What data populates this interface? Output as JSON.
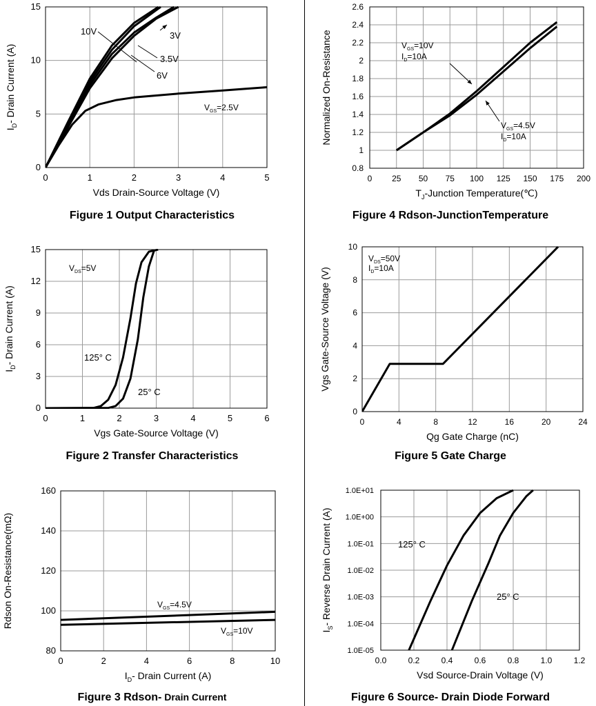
{
  "figures": [
    {
      "id": "fig1",
      "caption": "Figure 1 Output Characteristics",
      "chart_data": {
        "type": "line",
        "xlabel": "Vds Drain-Source Voltage (V)",
        "ylabel_main": "I",
        "ylabel_sub": "D",
        "ylabel_rest": "- Drain Current (A)",
        "xlim": [
          0,
          5
        ],
        "ylim": [
          0,
          15
        ],
        "xticks": [
          0,
          1,
          2,
          3,
          4,
          5
        ],
        "yticks": [
          0,
          5,
          10,
          15
        ],
        "xtick_labels": [
          "0",
          "1",
          "2",
          "3",
          "4",
          "5"
        ],
        "ytick_labels": [
          "0",
          "5",
          "10",
          "15"
        ],
        "grid": true,
        "series": [
          {
            "name": "10V",
            "points": [
              [
                0,
                0
              ],
              [
                0.5,
                4.2
              ],
              [
                1,
                8.3
              ],
              [
                1.5,
                11.4
              ],
              [
                2,
                13.5
              ],
              [
                2.55,
                15
              ]
            ]
          },
          {
            "name": "6V",
            "points": [
              [
                0,
                0
              ],
              [
                0.5,
                4.0
              ],
              [
                1,
                8.0
              ],
              [
                1.5,
                11.0
              ],
              [
                2,
                13.2
              ],
              [
                2.6,
                15
              ]
            ]
          },
          {
            "name": "3.5V",
            "points": [
              [
                0,
                0
              ],
              [
                0.5,
                3.9
              ],
              [
                1,
                7.7
              ],
              [
                1.5,
                10.6
              ],
              [
                2,
                12.6
              ],
              [
                2.5,
                14
              ],
              [
                2.9,
                15
              ]
            ]
          },
          {
            "name": "3V",
            "points": [
              [
                0,
                0
              ],
              [
                0.5,
                3.7
              ],
              [
                1,
                7.4
              ],
              [
                1.5,
                10.2
              ],
              [
                2,
                12.3
              ],
              [
                2.5,
                13.9
              ],
              [
                3,
                15
              ]
            ]
          },
          {
            "name": "2.5V",
            "points": [
              [
                0,
                0
              ],
              [
                0.3,
                2.1
              ],
              [
                0.6,
                4.0
              ],
              [
                0.9,
                5.3
              ],
              [
                1.2,
                5.9
              ],
              [
                1.6,
                6.3
              ],
              [
                2,
                6.55
              ],
              [
                3,
                6.9
              ],
              [
                4,
                7.2
              ],
              [
                5,
                7.5
              ]
            ]
          }
        ],
        "annotations": [
          {
            "text": "10V"
          },
          {
            "text": "3V"
          },
          {
            "text": "3.5V"
          },
          {
            "text": "6V"
          },
          {
            "main": "V",
            "sub": "GS",
            "rest": "=2.5V"
          }
        ]
      }
    },
    {
      "id": "fig2",
      "caption": "Figure 2 Transfer Characteristics",
      "chart_data": {
        "type": "line",
        "xlabel": "Vgs Gate-Source Voltage (V)",
        "ylabel_main": "I",
        "ylabel_sub": "D",
        "ylabel_rest": "- Drain Current (A)",
        "xlim": [
          0,
          6
        ],
        "ylim": [
          0,
          15
        ],
        "xticks": [
          0,
          1,
          2,
          3,
          4,
          5,
          6
        ],
        "yticks": [
          0,
          3,
          6,
          9,
          12,
          15
        ],
        "xtick_labels": [
          "0",
          "1",
          "2",
          "3",
          "4",
          "5",
          "6"
        ],
        "ytick_labels": [
          "0",
          "3",
          "6",
          "9",
          "12",
          "15"
        ],
        "grid": true,
        "series": [
          {
            "name": "125° C",
            "points": [
              [
                0,
                0
              ],
              [
                1.3,
                0.02
              ],
              [
                1.5,
                0.2
              ],
              [
                1.7,
                0.8
              ],
              [
                1.9,
                2.2
              ],
              [
                2.1,
                4.8
              ],
              [
                2.3,
                8.5
              ],
              [
                2.45,
                11.8
              ],
              [
                2.6,
                13.8
              ],
              [
                2.8,
                14.8
              ],
              [
                3.05,
                15
              ]
            ]
          },
          {
            "name": "25° C",
            "points": [
              [
                0,
                0
              ],
              [
                1.7,
                0.02
              ],
              [
                1.9,
                0.2
              ],
              [
                2.1,
                0.9
              ],
              [
                2.3,
                2.8
              ],
              [
                2.5,
                6.5
              ],
              [
                2.65,
                10.5
              ],
              [
                2.8,
                13.4
              ],
              [
                2.95,
                15
              ]
            ]
          }
        ],
        "annotations": [
          {
            "main": "V",
            "sub": "DS",
            "rest": "=5V"
          },
          {
            "text": "125° C"
          },
          {
            "text": "25° C"
          }
        ]
      }
    },
    {
      "id": "fig3",
      "caption_main": "Figure 3 Rdson-",
      "caption_small": " Drain Current",
      "chart_data": {
        "type": "line",
        "xlabel_main": "I",
        "xlabel_sub": "D",
        "xlabel_rest": "- Drain Current (A)",
        "ylabel": "Rdson On-Resistance(mΩ)",
        "xlim": [
          0,
          10
        ],
        "ylim": [
          80,
          160
        ],
        "xticks": [
          0,
          2,
          4,
          6,
          8,
          10
        ],
        "yticks": [
          80,
          100,
          120,
          140,
          160
        ],
        "xtick_labels": [
          "0",
          "2",
          "4",
          "6",
          "8",
          "10"
        ],
        "ytick_labels": [
          "80",
          "100",
          "120",
          "140",
          "160"
        ],
        "grid": true,
        "series": [
          {
            "name": "VGS=4.5V",
            "points": [
              [
                0,
                95.5
              ],
              [
                10,
                99.5
              ]
            ]
          },
          {
            "name": "VGS=10V",
            "points": [
              [
                0,
                93
              ],
              [
                10,
                95.5
              ]
            ]
          }
        ],
        "annotations": [
          {
            "main": "V",
            "sub": "GS",
            "rest": "=4.5V"
          },
          {
            "main": "V",
            "sub": "GS",
            "rest": "=10V"
          }
        ]
      }
    },
    {
      "id": "fig4",
      "caption": "Figure 4 Rdson-JunctionTemperature",
      "chart_data": {
        "type": "line",
        "xlabel_main": "T",
        "xlabel_sub": "J",
        "xlabel_rest": "-Junction Temperature(℃)",
        "ylabel": "Normalized On-Resistance",
        "xlim": [
          0,
          200
        ],
        "ylim": [
          0.8,
          2.6
        ],
        "xticks": [
          0,
          25,
          50,
          75,
          100,
          125,
          150,
          175,
          200
        ],
        "yticks": [
          0.8,
          1,
          1.2,
          1.4,
          1.6,
          1.8,
          2,
          2.2,
          2.4,
          2.6
        ],
        "xtick_labels": [
          "0",
          "25",
          "50",
          "75",
          "100",
          "125",
          "150",
          "175",
          "200"
        ],
        "ytick_labels": [
          "0.8",
          "1",
          "1.2",
          "1.4",
          "1.6",
          "1.8",
          "2",
          "2.2",
          "2.4",
          "2.6"
        ],
        "grid": true,
        "series": [
          {
            "name": "VGS=10V",
            "points": [
              [
                25,
                1.0
              ],
              [
                50,
                1.2
              ],
              [
                75,
                1.41
              ],
              [
                100,
                1.66
              ],
              [
                125,
                1.93
              ],
              [
                150,
                2.2
              ],
              [
                175,
                2.43
              ]
            ]
          },
          {
            "name": "VGS=4.5V",
            "points": [
              [
                25,
                1.0
              ],
              [
                50,
                1.2
              ],
              [
                75,
                1.39
              ],
              [
                100,
                1.62
              ],
              [
                125,
                1.88
              ],
              [
                150,
                2.14
              ],
              [
                175,
                2.38
              ]
            ]
          }
        ],
        "annotations": [
          {
            "main": "V",
            "sub": "GS",
            "rest": "=10V"
          },
          {
            "main": "I",
            "sub": "D",
            "rest": "=10A"
          },
          {
            "main": "V",
            "sub": "GS",
            "rest": "=4.5V"
          },
          {
            "main": "I",
            "sub": "D",
            "rest": "=10A"
          }
        ]
      }
    },
    {
      "id": "fig5",
      "caption": "Figure 5 Gate Charge",
      "chart_data": {
        "type": "line",
        "xlabel": "Qg Gate Charge (nC)",
        "ylabel": "Vgs Gate-Source Voltage (V)",
        "xlim": [
          0,
          24
        ],
        "ylim": [
          0,
          10
        ],
        "xticks": [
          0,
          4,
          8,
          12,
          16,
          20,
          24
        ],
        "yticks": [
          0,
          2,
          4,
          6,
          8,
          10
        ],
        "xtick_labels": [
          "0",
          "4",
          "8",
          "12",
          "16",
          "20",
          "24"
        ],
        "ytick_labels": [
          "0",
          "2",
          "4",
          "6",
          "8",
          "10"
        ],
        "grid": true,
        "series": [
          {
            "name": "Vgs",
            "points": [
              [
                0,
                0
              ],
              [
                3,
                2.9
              ],
              [
                8.8,
                2.9
              ],
              [
                21.3,
                10
              ]
            ]
          }
        ],
        "annotations": [
          {
            "main": "V",
            "sub": "DS",
            "rest": "=50V"
          },
          {
            "main": "I",
            "sub": "D",
            "rest": "=10A"
          }
        ]
      }
    },
    {
      "id": "fig6",
      "caption": "Figure 6 Source- Drain Diode Forward",
      "chart_data": {
        "type": "line",
        "yscale": "log",
        "xlabel": "Vsd Source-Drain Voltage (V)",
        "ylabel_main": "I",
        "ylabel_sub": "S",
        "ylabel_rest": "- Reverse Drain Current (A)",
        "xlim": [
          0.0,
          1.2
        ],
        "ylim": [
          1e-05,
          10
        ],
        "xticks": [
          0,
          0.2,
          0.4,
          0.6,
          0.8,
          1.0,
          1.2
        ],
        "yticks": [
          1e-05,
          0.0001,
          0.001,
          0.01,
          0.1,
          1,
          10
        ],
        "xtick_labels": [
          "0.0",
          "0.2",
          "0.4",
          "0.6",
          "0.8",
          "1.0",
          "1.2"
        ],
        "ytick_labels": [
          "1.0E-05",
          "1.0E-04",
          "1.0E-03",
          "1.0E-02",
          "1.0E-01",
          "1.0E+00",
          "1.0E+01"
        ],
        "grid": true,
        "series": [
          {
            "name": "125° C",
            "points": [
              [
                0.17,
                1e-05
              ],
              [
                0.3,
                0.0007
              ],
              [
                0.4,
                0.015
              ],
              [
                0.5,
                0.2
              ],
              [
                0.6,
                1.4
              ],
              [
                0.7,
                5
              ],
              [
                0.8,
                10
              ]
            ]
          },
          {
            "name": "25° C",
            "points": [
              [
                0.43,
                1e-05
              ],
              [
                0.55,
                0.0007
              ],
              [
                0.65,
                0.018
              ],
              [
                0.72,
                0.2
              ],
              [
                0.8,
                1.4
              ],
              [
                0.88,
                6
              ],
              [
                0.92,
                10
              ]
            ]
          }
        ],
        "annotations": [
          {
            "text": "125° C"
          },
          {
            "text": "25° C"
          }
        ]
      }
    }
  ]
}
